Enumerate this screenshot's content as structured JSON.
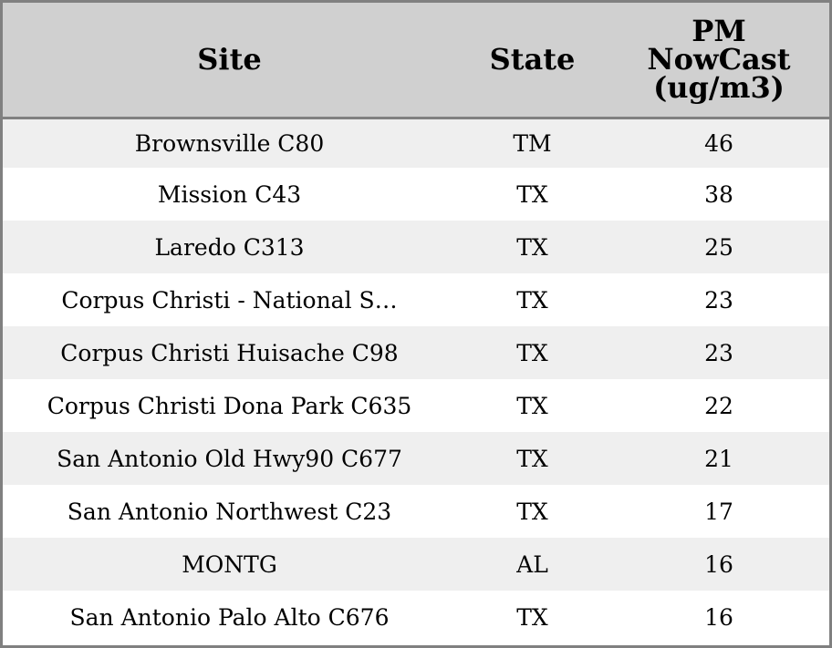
{
  "table": {
    "headers": {
      "site": "Site",
      "state": "State",
      "pm_line1": "PM",
      "pm_line2": "NowCast",
      "pm_line3": "(ug/m3)"
    },
    "rows": [
      {
        "site": "Brownsville C80",
        "state": "TM",
        "pm": "46"
      },
      {
        "site": "Mission C43",
        "state": "TX",
        "pm": "38"
      },
      {
        "site": "Laredo C313",
        "state": "TX",
        "pm": "25"
      },
      {
        "site": "Corpus Christi - National S…",
        "state": "TX",
        "pm": "23"
      },
      {
        "site": "Corpus Christi Huisache C98",
        "state": "TX",
        "pm": "23"
      },
      {
        "site": "Corpus Christi Dona Park C635",
        "state": "TX",
        "pm": "22"
      },
      {
        "site": "San Antonio Old Hwy90 C677",
        "state": "TX",
        "pm": "21"
      },
      {
        "site": "San Antonio Northwest C23",
        "state": "TX",
        "pm": "17"
      },
      {
        "site": "MONTG",
        "state": "AL",
        "pm": "16"
      },
      {
        "site": "San Antonio Palo Alto C676",
        "state": "TX",
        "pm": "16"
      }
    ]
  },
  "colors": {
    "header_bg": "#d0d0d0",
    "row_alt_bg": "#efefef",
    "row_bg": "#ffffff",
    "border": "#808080"
  }
}
